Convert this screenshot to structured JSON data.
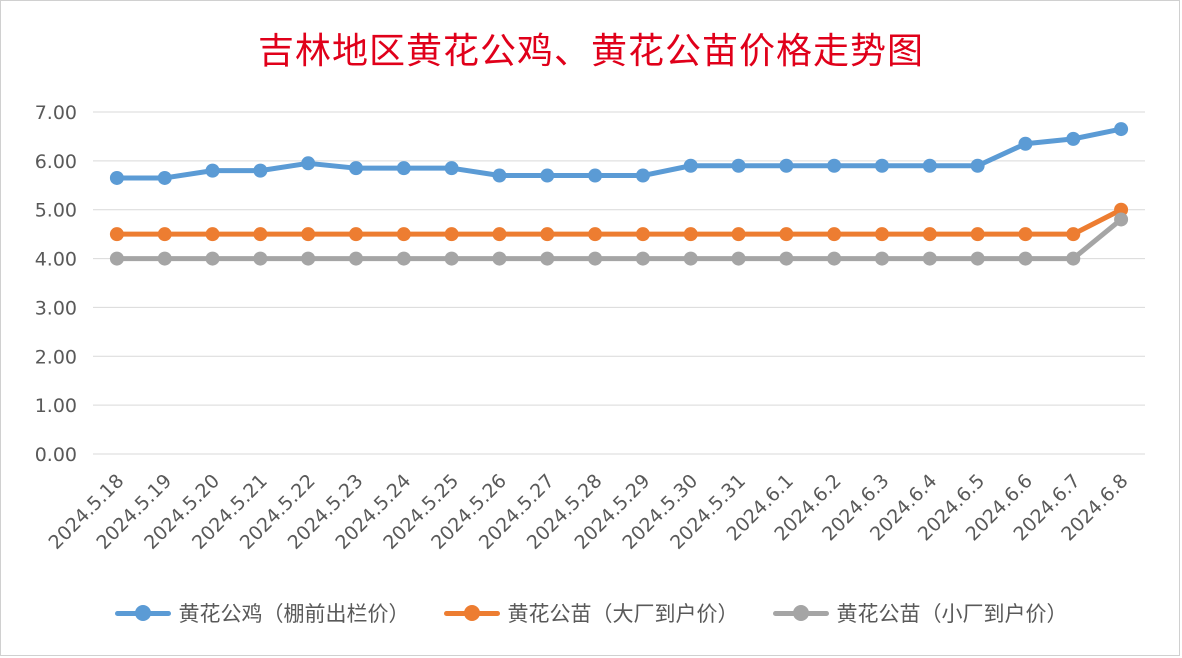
{
  "chart_data": {
    "type": "line",
    "title": "吉林地区黄花公鸡、黄花公苗价格走势图",
    "xlabel": "",
    "ylabel": "",
    "ylim": [
      0,
      7
    ],
    "yticks": [
      "0.00",
      "1.00",
      "2.00",
      "3.00",
      "4.00",
      "5.00",
      "6.00",
      "7.00"
    ],
    "categories": [
      "2024.5.18",
      "2024.5.19",
      "2024.5.20",
      "2024.5.21",
      "2024.5.22",
      "2024.5.23",
      "2024.5.24",
      "2024.5.25",
      "2024.5.26",
      "2024.5.27",
      "2024.5.28",
      "2024.5.29",
      "2024.5.30",
      "2024.5.31",
      "2024.6.1",
      "2024.6.2",
      "2024.6.3",
      "2024.6.4",
      "2024.6.5",
      "2024.6.6",
      "2024.6.7",
      "2024.6.8"
    ],
    "grid": true,
    "legend_position": "bottom",
    "series": [
      {
        "name": "黄花公鸡（棚前出栏价）",
        "color": "#5b9bd5",
        "values": [
          5.65,
          5.65,
          5.8,
          5.8,
          5.95,
          5.85,
          5.85,
          5.85,
          5.7,
          5.7,
          5.7,
          5.7,
          5.9,
          5.9,
          5.9,
          5.9,
          5.9,
          5.9,
          5.9,
          6.35,
          6.45,
          6.65
        ]
      },
      {
        "name": "黄花公苗（大厂到户价）",
        "color": "#ed7d31",
        "values": [
          4.5,
          4.5,
          4.5,
          4.5,
          4.5,
          4.5,
          4.5,
          4.5,
          4.5,
          4.5,
          4.5,
          4.5,
          4.5,
          4.5,
          4.5,
          4.5,
          4.5,
          4.5,
          4.5,
          4.5,
          4.5,
          5.0
        ]
      },
      {
        "name": "黄花公苗（小厂到户价）",
        "color": "#a5a5a5",
        "values": [
          4.0,
          4.0,
          4.0,
          4.0,
          4.0,
          4.0,
          4.0,
          4.0,
          4.0,
          4.0,
          4.0,
          4.0,
          4.0,
          4.0,
          4.0,
          4.0,
          4.0,
          4.0,
          4.0,
          4.0,
          4.0,
          4.8
        ]
      }
    ]
  }
}
